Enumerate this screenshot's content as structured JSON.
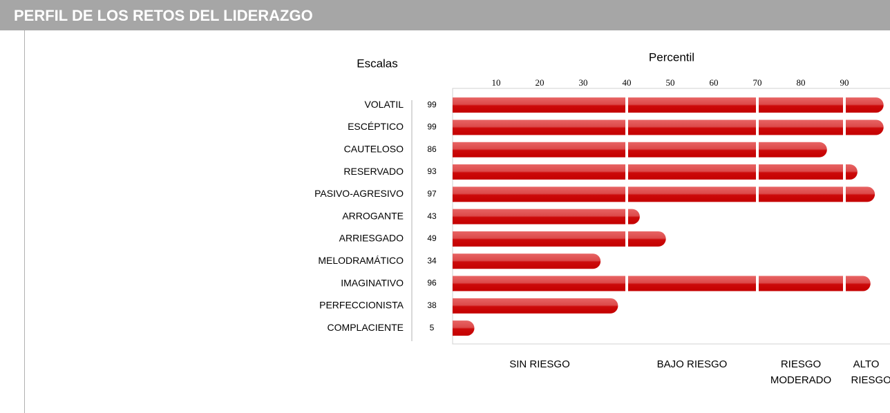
{
  "header": {
    "title": "PERFIL DE LOS RETOS DEL LIDERAZGO"
  },
  "chart_data": {
    "type": "bar",
    "orientation": "horizontal",
    "y_label": "Escalas",
    "x_label": "Percentil",
    "categories": [
      "VOLATIL",
      "ESCÉPTICO",
      "CAUTELOSO",
      "RESERVADO",
      "PASIVO-AGRESIVO",
      "ARROGANTE",
      "ARRIESGADO",
      "MELODRAMÁTICO",
      "IMAGINATIVO",
      "PERFECCIONISTA",
      "COMPLACIENTE"
    ],
    "values": [
      99,
      99,
      86,
      93,
      97,
      43,
      49,
      34,
      96,
      38,
      5
    ],
    "color": "#d42020",
    "xlim": [
      0,
      100
    ],
    "xticks": [
      10,
      20,
      30,
      40,
      50,
      60,
      70,
      80,
      90
    ],
    "zones": [
      {
        "label": "SIN RIESGO",
        "from": 0,
        "to": 40
      },
      {
        "label": "BAJO RIESGO",
        "from": 40,
        "to": 70
      },
      {
        "label": "RIESGO MODERADO",
        "from": 70,
        "to": 90
      },
      {
        "label": "ALTO RIESGO",
        "from": 90,
        "to": 100
      }
    ]
  }
}
